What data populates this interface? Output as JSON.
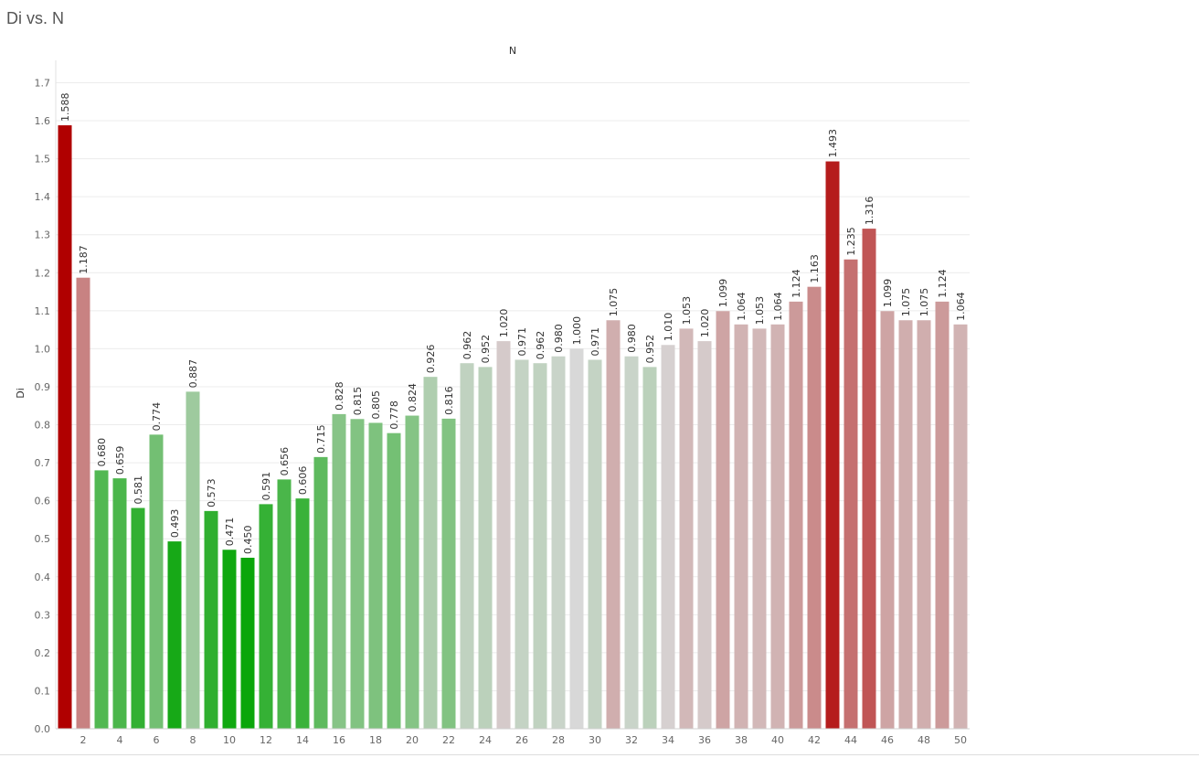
{
  "chart_data": {
    "type": "bar",
    "title": "Di vs. N",
    "xlabel": "N",
    "ylabel": "Di",
    "ylim": [
      0,
      1.7
    ],
    "yticks": [
      0.0,
      0.1,
      0.2,
      0.3,
      0.4,
      0.5,
      0.6,
      0.7,
      0.8,
      0.9,
      1.0,
      1.1,
      1.2,
      1.3,
      1.4,
      1.5,
      1.6,
      1.7
    ],
    "xtick_labels": [
      "2",
      "4",
      "6",
      "8",
      "10",
      "12",
      "14",
      "16",
      "18",
      "20",
      "22",
      "24",
      "26",
      "28",
      "30",
      "32",
      "34",
      "36",
      "38",
      "40",
      "42",
      "44",
      "46",
      "48",
      "50"
    ],
    "x_axis_position": "top",
    "grid": true,
    "legend": "none",
    "color_scale": {
      "low": "#0aa60a",
      "mid": "#d8d8d8",
      "high": "#b00000",
      "midpoint": 1.0
    },
    "categories": [
      1,
      2,
      3,
      4,
      5,
      6,
      7,
      8,
      9,
      10,
      11,
      12,
      13,
      14,
      15,
      16,
      17,
      18,
      19,
      20,
      21,
      22,
      23,
      24,
      25,
      26,
      27,
      28,
      29,
      30,
      31,
      32,
      33,
      34,
      35,
      36,
      37,
      38,
      39,
      40,
      41,
      42,
      43,
      44,
      45,
      46,
      47,
      48,
      49,
      50
    ],
    "values": [
      1.588,
      1.187,
      0.68,
      0.659,
      0.581,
      0.774,
      0.493,
      0.887,
      0.573,
      0.471,
      0.45,
      0.591,
      0.656,
      0.606,
      0.715,
      0.828,
      0.815,
      0.805,
      0.778,
      0.824,
      0.926,
      0.816,
      0.962,
      0.952,
      1.02,
      0.971,
      0.962,
      0.98,
      1.0,
      0.971,
      1.075,
      0.98,
      0.952,
      1.01,
      1.053,
      1.02,
      1.099,
      1.064,
      1.053,
      1.064,
      1.124,
      1.163,
      1.493,
      1.235,
      1.316,
      1.099,
      1.075,
      1.075,
      1.124,
      1.064
    ],
    "data_labels": [
      "1.588",
      "1.187",
      "0.680",
      "0.659",
      "0.581",
      "0.774",
      "0.493",
      "0.887",
      "0.573",
      "0.471",
      "0.450",
      "0.591",
      "0.656",
      "0.606",
      "0.715",
      "0.828",
      "0.815",
      "0.805",
      "0.778",
      "0.824",
      "0.926",
      "0.816",
      "0.962",
      "0.952",
      "1.020",
      "0.971",
      "0.962",
      "0.980",
      "1.000",
      "0.971",
      "1.075",
      "0.980",
      "0.952",
      "1.010",
      "1.053",
      "1.020",
      "1.099",
      "1.064",
      "1.053",
      "1.064",
      "1.124",
      "1.163",
      "1.493",
      "1.235",
      "1.316",
      "1.099",
      "1.075",
      "1.075",
      "1.124",
      "1.064"
    ]
  }
}
